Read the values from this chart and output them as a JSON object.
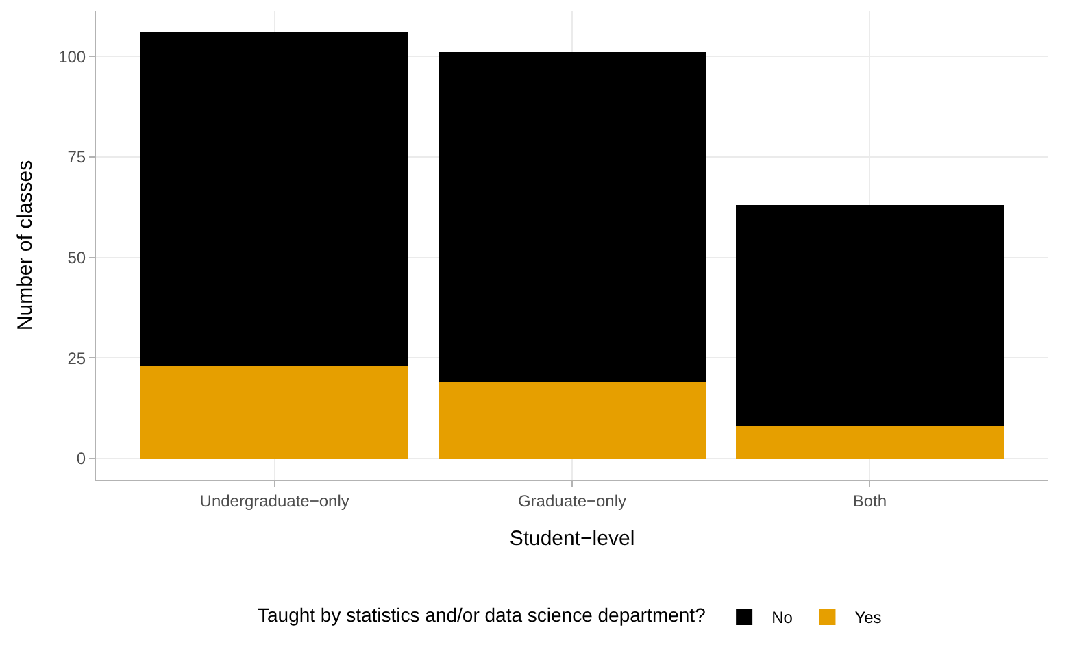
{
  "chart_data": {
    "type": "bar",
    "stacked": true,
    "xlabel": "Student−level",
    "ylabel": "Number of classes",
    "legend_title": "Taught by statistics and/or data science department?",
    "categories": [
      "Undergraduate−only",
      "Graduate−only",
      "Both"
    ],
    "series": [
      {
        "name": "Yes",
        "color": "#e69f00",
        "values": [
          23,
          19,
          8
        ]
      },
      {
        "name": "No",
        "color": "#000000",
        "values": [
          83,
          82,
          55
        ]
      }
    ],
    "ylim": [
      -5.3,
      111.3
    ],
    "yticks": [
      0,
      25,
      50,
      75,
      100
    ],
    "grid": true,
    "legend": "bottom"
  }
}
